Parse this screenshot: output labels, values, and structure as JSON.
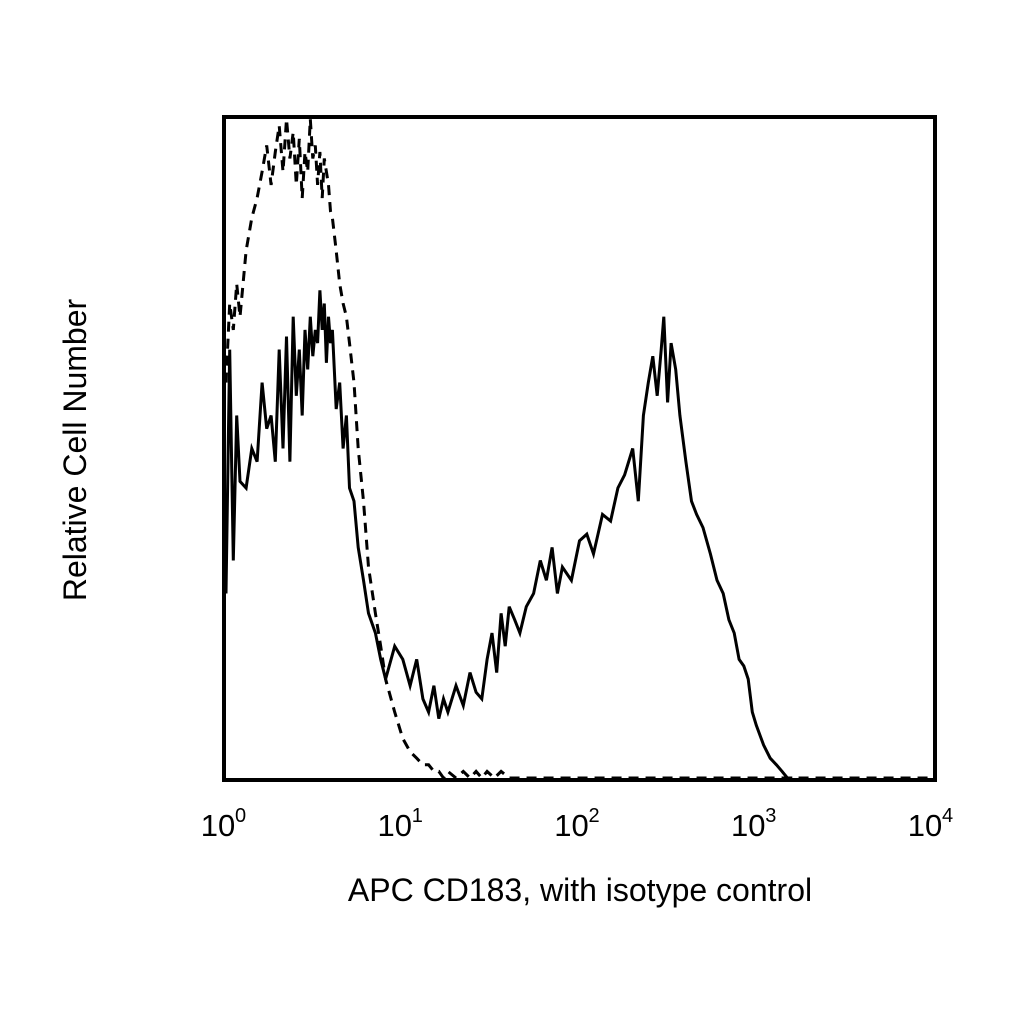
{
  "chart_data": {
    "type": "line",
    "title": "",
    "xlabel": "APC CD183, with isotype control",
    "ylabel": "Relative Cell Number",
    "x_scale": "log",
    "xlim": [
      1,
      10000
    ],
    "ylim": [
      0,
      100
    ],
    "x_ticks": [
      {
        "base": "10",
        "exp": "0"
      },
      {
        "base": "10",
        "exp": "1"
      },
      {
        "base": "10",
        "exp": "2"
      },
      {
        "base": "10",
        "exp": "3"
      },
      {
        "base": "10",
        "exp": "4"
      }
    ],
    "grid": false,
    "legend": "none",
    "series": [
      {
        "style": "solid",
        "color": "#000000",
        "x": [
          1.0,
          1.05,
          1.1,
          1.15,
          1.2,
          1.3,
          1.4,
          1.5,
          1.6,
          1.7,
          1.8,
          1.9,
          2.0,
          2.1,
          2.2,
          2.3,
          2.4,
          2.5,
          2.6,
          2.7,
          2.8,
          2.9,
          3.0,
          3.1,
          3.2,
          3.3,
          3.4,
          3.5,
          3.6,
          3.7,
          3.8,
          3.9,
          4.0,
          4.2,
          4.4,
          4.6,
          4.8,
          5.0,
          5.3,
          5.6,
          6.0,
          6.4,
          7.0,
          7.5,
          8.0,
          9.0,
          10.0,
          11.0,
          12.0,
          13.0,
          14.0,
          15.0,
          16.0,
          17.0,
          18.0,
          20.0,
          22.0,
          24.0,
          26.0,
          28.0,
          30.0,
          32.0,
          34.0,
          36.0,
          38.0,
          40.0,
          43.0,
          46.0,
          50.0,
          55.0,
          60.0,
          65.0,
          70.0,
          75.0,
          80.0,
          90.0,
          100.0,
          110.0,
          120.0,
          135.0,
          150.0,
          165.0,
          180.0,
          200.0,
          215.0,
          230.0,
          245.0,
          260.0,
          275.0,
          290.0,
          300.0,
          315.0,
          330.0,
          350.0,
          370.0,
          400.0,
          430.0,
          460.0,
          500.0,
          550.0,
          600.0,
          650.0,
          700.0,
          750.0,
          800.0,
          850.0,
          900.0,
          950.0,
          1000.0,
          1100.0,
          1200.0,
          1300.0,
          1400.0,
          1500.0,
          1600.0
        ],
        "y": [
          28,
          65,
          33,
          55,
          45,
          44,
          50,
          48,
          60,
          53,
          55,
          48,
          65,
          50,
          67,
          48,
          70,
          58,
          65,
          55,
          68,
          62,
          70,
          64,
          68,
          66,
          74,
          68,
          72,
          63,
          70,
          66,
          68,
          56,
          60,
          50,
          55,
          44,
          42,
          35,
          30,
          25,
          22,
          18,
          15,
          20,
          18,
          14,
          18,
          12,
          10,
          14,
          9,
          12,
          10,
          14,
          11,
          16,
          13,
          12,
          18,
          22,
          16,
          25,
          20,
          26,
          24,
          22,
          26,
          28,
          33,
          30,
          35,
          28,
          32,
          30,
          36,
          37,
          34,
          40,
          39,
          44,
          46,
          50,
          42,
          55,
          60,
          64,
          58,
          65,
          70,
          57,
          66,
          62,
          55,
          48,
          42,
          40,
          38,
          34,
          30,
          28,
          24,
          22,
          18,
          17,
          15,
          10,
          8,
          5,
          3,
          2,
          1,
          0,
          0
        ],
        "note_y": ""
      },
      {
        "style": "dashed",
        "color": "#000000",
        "x": [
          1.0,
          1.05,
          1.1,
          1.15,
          1.2,
          1.3,
          1.4,
          1.5,
          1.6,
          1.7,
          1.8,
          1.9,
          2.0,
          2.1,
          2.2,
          2.3,
          2.4,
          2.5,
          2.6,
          2.7,
          2.8,
          2.9,
          3.0,
          3.1,
          3.2,
          3.3,
          3.4,
          3.5,
          3.6,
          3.7,
          3.8,
          3.9,
          4.0,
          4.2,
          4.4,
          4.6,
          4.8,
          5.0,
          5.3,
          5.6,
          6.0,
          6.4,
          7.0,
          7.5,
          8.0,
          9.0,
          10.0,
          11.0,
          12.0,
          13.0,
          14.0,
          15.0,
          16.0,
          17.0,
          18.0,
          20.0,
          22.0,
          24.0,
          26.0,
          28.0,
          30.0,
          33.0,
          36.0,
          40.0,
          50.0,
          100.0,
          1000.0,
          10000.0
        ],
        "y": [
          60,
          72,
          68,
          75,
          70,
          80,
          85,
          88,
          92,
          96,
          90,
          95,
          99,
          92,
          100,
          94,
          98,
          90,
          97,
          88,
          95,
          92,
          100,
          94,
          96,
          90,
          95,
          88,
          94,
          92,
          90,
          86,
          85,
          80,
          75,
          72,
          70,
          66,
          60,
          50,
          42,
          32,
          25,
          20,
          15,
          10,
          6,
          4,
          3,
          2,
          2,
          1,
          1,
          0,
          1,
          0,
          1,
          0,
          1,
          0,
          1,
          0,
          1,
          0,
          0,
          0,
          0,
          0
        ],
        "note_y": ""
      }
    ]
  }
}
